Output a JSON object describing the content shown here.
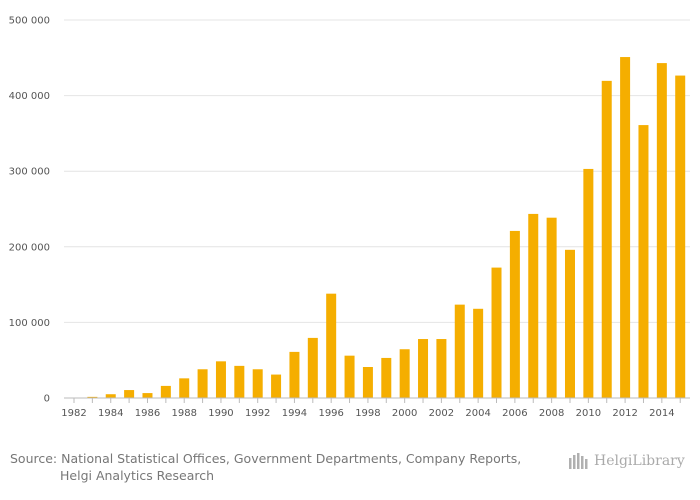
{
  "chart_data": {
    "type": "bar",
    "title": "",
    "xlabel": "",
    "ylabel": "",
    "ylim": [
      0,
      500000
    ],
    "yticks": [
      0,
      100000,
      200000,
      300000,
      400000,
      500000
    ],
    "ytick_labels": [
      "0",
      "100 000",
      "200 000",
      "300 000",
      "400 000",
      "500 000"
    ],
    "xtick_labels": [
      "1982",
      "1984",
      "1986",
      "1988",
      "1990",
      "1992",
      "1994",
      "1996",
      "1998",
      "2000",
      "2002",
      "2004",
      "2006",
      "2008",
      "2010",
      "2012",
      "2014"
    ],
    "grid": true,
    "bar_color": "#F5AE00",
    "categories": [
      "1982",
      "1983",
      "1984",
      "1985",
      "1986",
      "1987",
      "1988",
      "1989",
      "1990",
      "1991",
      "1992",
      "1993",
      "1994",
      "1995",
      "1996",
      "1997",
      "1998",
      "1999",
      "2000",
      "2001",
      "2002",
      "2003",
      "2004",
      "2005",
      "2006",
      "2007",
      "2008",
      "2009",
      "2010",
      "2011",
      "2012",
      "2013",
      "2014",
      "2015"
    ],
    "values": [
      0,
      1500,
      5000,
      10500,
      6500,
      16000,
      26000,
      38000,
      48500,
      42500,
      38000,
      31000,
      61000,
      79500,
      138000,
      56000,
      41000,
      53000,
      64500,
      78000,
      78000,
      123500,
      118000,
      172500,
      221000,
      243500,
      238500,
      196000,
      303000,
      419500,
      451000,
      361000,
      443000,
      426500
    ]
  },
  "footer": {
    "source_line1": "Source: National Statistical Offices, Government Departments, Company Reports,",
    "source_line2": "Helgi Analytics Research",
    "logo_text": "HelgiLibrary"
  }
}
